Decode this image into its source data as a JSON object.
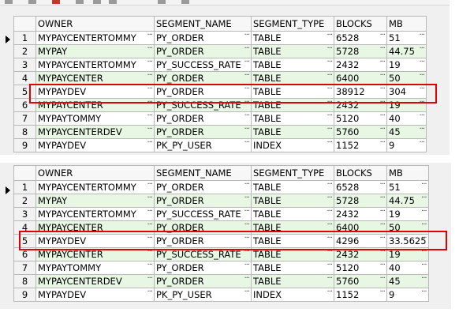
{
  "columns": [
    "OWNER",
    "SEGMENT_NAME",
    "SEGMENT_TYPE",
    "BLOCKS",
    "MB"
  ],
  "top_grid": {
    "rows": [
      {
        "n": "1",
        "owner": "MYPAYCENTERTOMMY",
        "segment": "PY_ORDER",
        "type": "TABLE",
        "blocks": "6528",
        "mb": "51"
      },
      {
        "n": "2",
        "owner": "MYPAY",
        "segment": "PY_ORDER",
        "type": "TABLE",
        "blocks": "5728",
        "mb": "44.75"
      },
      {
        "n": "3",
        "owner": "MYPAYCENTERTOMMY",
        "segment": "PY_SUCCESS_RATE",
        "type": "TABLE",
        "blocks": "2432",
        "mb": "19"
      },
      {
        "n": "4",
        "owner": "MYPAYCENTER",
        "segment": "PY_ORDER",
        "type": "TABLE",
        "blocks": "6400",
        "mb": "50"
      },
      {
        "n": "5",
        "owner": "MYPAYDEV",
        "segment": "PY_ORDER",
        "type": "TABLE",
        "blocks": "38912",
        "mb": "304"
      },
      {
        "n": "6",
        "owner": "MYPAYCENTER",
        "segment": "PY_SUCCESS_RATE",
        "type": "TABLE",
        "blocks": "2432",
        "mb": "19"
      },
      {
        "n": "7",
        "owner": "MYPAYTOMMY",
        "segment": "PY_ORDER",
        "type": "TABLE",
        "blocks": "5120",
        "mb": "40"
      },
      {
        "n": "8",
        "owner": "MYPAYCENTERDEV",
        "segment": "PY_ORDER",
        "type": "TABLE",
        "blocks": "5760",
        "mb": "45"
      },
      {
        "n": "9",
        "owner": "MYPAYDEV",
        "segment": "PK_PY_USER",
        "type": "INDEX",
        "blocks": "1152",
        "mb": "9"
      }
    ]
  },
  "bottom_grid": {
    "rows": [
      {
        "n": "1",
        "owner": "MYPAYCENTERTOMMY",
        "segment": "PY_ORDER",
        "type": "TABLE",
        "blocks": "6528",
        "mb": "51"
      },
      {
        "n": "2",
        "owner": "MYPAY",
        "segment": "PY_ORDER",
        "type": "TABLE",
        "blocks": "5728",
        "mb": "44.75"
      },
      {
        "n": "3",
        "owner": "MYPAYCENTERTOMMY",
        "segment": "PY_SUCCESS_RATE",
        "type": "TABLE",
        "blocks": "2432",
        "mb": "19"
      },
      {
        "n": "4",
        "owner": "MYPAYCENTER",
        "segment": "PY_ORDER",
        "type": "TABLE",
        "blocks": "6400",
        "mb": "50"
      },
      {
        "n": "5",
        "owner": "MYPAYDEV",
        "segment": "PY_ORDER",
        "type": "TABLE",
        "blocks": "4296",
        "mb": "33.5625"
      },
      {
        "n": "6",
        "owner": "MYPAYCENTER",
        "segment": "PY_SUCCESS_RATE",
        "type": "TABLE",
        "blocks": "2432",
        "mb": "19"
      },
      {
        "n": "7",
        "owner": "MYPAYTOMMY",
        "segment": "PY_ORDER",
        "type": "TABLE",
        "blocks": "5120",
        "mb": "40"
      },
      {
        "n": "8",
        "owner": "MYPAYCENTERDEV",
        "segment": "PY_ORDER",
        "type": "TABLE",
        "blocks": "5760",
        "mb": "45"
      },
      {
        "n": "9",
        "owner": "MYPAYDEV",
        "segment": "PK_PY_USER",
        "type": "INDEX",
        "blocks": "1152",
        "mb": "9"
      }
    ]
  },
  "colors": {
    "highlight_box": "#e00000",
    "even_row_bg": "#e8f6e4",
    "odd_row_bg": "#ffffff"
  },
  "ellipsis_glyph": "···",
  "current_row_indicator": "triangle-right-icon"
}
